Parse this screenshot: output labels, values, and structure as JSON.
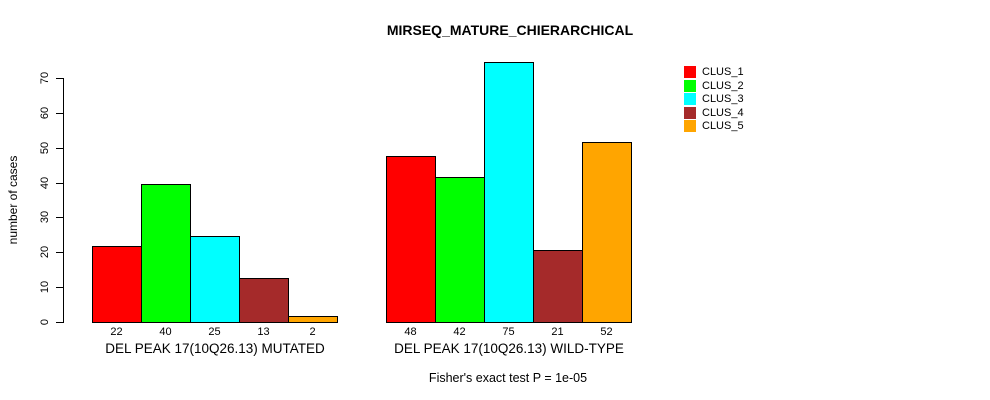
{
  "chart_data": {
    "type": "bar",
    "title": "MIRSEQ_MATURE_CHIERARCHICAL",
    "ylabel": "number of cases",
    "ylim": [
      0,
      70
    ],
    "yticks": [
      0,
      10,
      20,
      30,
      40,
      50,
      60,
      70
    ],
    "grid": false,
    "bar_value_labels": true,
    "legend_position": "right-outside",
    "categories": [
      "DEL PEAK 17(10Q26.13) MUTATED",
      "DEL PEAK 17(10Q26.13) WILD-TYPE"
    ],
    "series": [
      {
        "name": "CLUS_1",
        "color": "#FF0000",
        "values": [
          22,
          48
        ]
      },
      {
        "name": "CLUS_2",
        "color": "#00FF00",
        "values": [
          40,
          42
        ]
      },
      {
        "name": "CLUS_3",
        "color": "#00FFFF",
        "values": [
          25,
          75
        ]
      },
      {
        "name": "CLUS_4",
        "color": "#A52A2A",
        "values": [
          13,
          21
        ]
      },
      {
        "name": "CLUS_5",
        "color": "#FFA500",
        "values": [
          2,
          52
        ]
      }
    ],
    "annotation": "Fisher's exact test P = 1e-05"
  }
}
